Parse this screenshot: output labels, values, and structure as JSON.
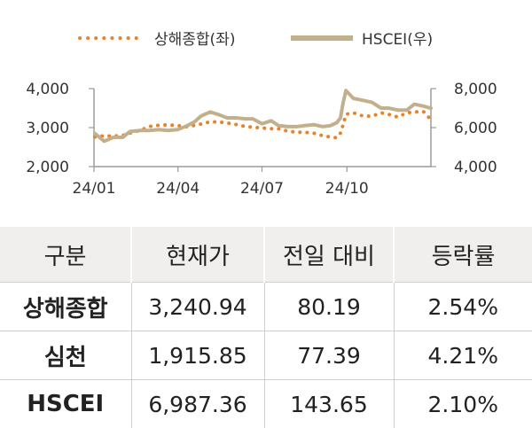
{
  "chart_data": {
    "type": "line",
    "legend": [
      {
        "name": "상해종합(좌)",
        "color": "#e8832a",
        "style": "dotted",
        "axis": "left"
      },
      {
        "name": "HSCEI(우)",
        "color": "#c2b08c",
        "style": "solid",
        "axis": "right"
      }
    ],
    "legend_position": "top",
    "x_ticks": [
      "24/01",
      "24/04",
      "24/07",
      "24/10"
    ],
    "y_left": {
      "range": [
        2000,
        4000
      ],
      "ticks": [
        "2,000",
        "3,000",
        "4,000"
      ]
    },
    "y_right": {
      "range": [
        4000,
        8000
      ],
      "ticks": [
        "4,000",
        "6,000",
        "8,000"
      ]
    },
    "grid": false,
    "series": [
      {
        "name": "상해종합(좌)",
        "axis": "left",
        "x": [
          "24/01/02",
          "24/01/12",
          "24/01/22",
          "24/02/01",
          "24/02/09",
          "24/02/20",
          "24/03/01",
          "24/03/11",
          "24/03/21",
          "24/04/01",
          "24/04/11",
          "24/04/19",
          "24/04/26",
          "24/05/06",
          "24/05/16",
          "24/05/24",
          "24/06/03",
          "24/06/13",
          "24/06/21",
          "24/07/01",
          "24/07/11",
          "24/07/19",
          "24/07/29",
          "24/08/08",
          "24/08/16",
          "24/08/26",
          "24/09/05",
          "24/09/13",
          "24/09/20",
          "24/09/24",
          "24/09/27",
          "24/09/30",
          "24/10/08",
          "24/10/18",
          "24/10/28",
          "24/11/07",
          "24/11/15",
          "24/11/25",
          "24/12/05",
          "24/12/13",
          "24/12/23",
          "24/12/31"
        ],
        "values": [
          2760,
          2790,
          2780,
          2800,
          2860,
          2930,
          3030,
          3060,
          3070,
          3050,
          3020,
          3060,
          3090,
          3150,
          3140,
          3120,
          3080,
          3030,
          3010,
          2990,
          2970,
          2970,
          2910,
          2880,
          2880,
          2860,
          2790,
          2760,
          2740,
          2860,
          3080,
          3340,
          3380,
          3300,
          3290,
          3380,
          3340,
          3270,
          3380,
          3400,
          3410,
          3200
        ]
      },
      {
        "name": "HSCEI(우)",
        "axis": "right",
        "x": [
          "24/01/02",
          "24/01/12",
          "24/01/22",
          "24/02/01",
          "24/02/09",
          "24/02/20",
          "24/03/01",
          "24/03/11",
          "24/03/21",
          "24/04/01",
          "24/04/11",
          "24/04/19",
          "24/04/26",
          "24/05/06",
          "24/05/16",
          "24/05/24",
          "24/06/03",
          "24/06/13",
          "24/06/21",
          "24/07/01",
          "24/07/11",
          "24/07/19",
          "24/07/29",
          "24/08/08",
          "24/08/16",
          "24/08/26",
          "24/09/05",
          "24/09/13",
          "24/09/20",
          "24/09/24",
          "24/09/27",
          "24/09/30",
          "24/10/08",
          "24/10/18",
          "24/10/28",
          "24/11/07",
          "24/11/15",
          "24/11/25",
          "24/12/05",
          "24/12/13",
          "24/12/23",
          "24/12/31"
        ],
        "values": [
          5700,
          5300,
          5500,
          5500,
          5800,
          5850,
          5850,
          5900,
          5850,
          5900,
          6100,
          6300,
          6600,
          6800,
          6650,
          6500,
          6500,
          6450,
          6450,
          6200,
          6350,
          6100,
          6050,
          6050,
          6100,
          6150,
          6050,
          6100,
          6250,
          6500,
          7300,
          7900,
          7500,
          7400,
          7300,
          7000,
          7000,
          6900,
          6900,
          7200,
          7100,
          6990
        ]
      }
    ]
  },
  "table": {
    "headers": [
      "구분",
      "현재가",
      "전일 대비",
      "등락률"
    ],
    "rows": [
      [
        "상해종합",
        "3,240.94",
        "80.19",
        "2.54%"
      ],
      [
        "심천",
        "1,915.85",
        "77.39",
        "4.21%"
      ],
      [
        "HSCEI",
        "6,987.36",
        "143.65",
        "2.10%"
      ]
    ]
  }
}
